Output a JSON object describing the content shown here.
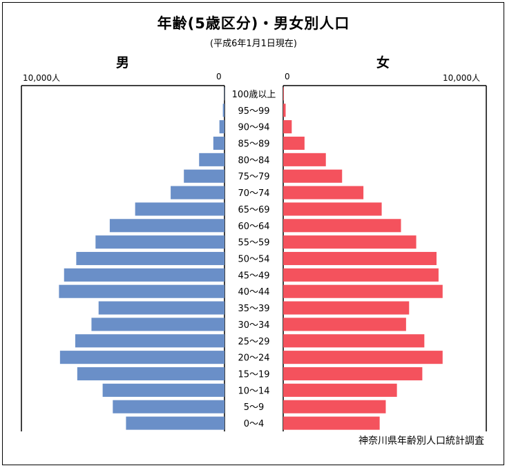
{
  "title": "年齢(5歳区分)・男女別人口",
  "subtitle": "(平成6年1月1日現在)",
  "male_label": "男",
  "female_label": "女",
  "axis": {
    "male_max_label": "10,000人",
    "male_zero_label": "0",
    "female_zero_label": "0",
    "female_max_label": "10,000人"
  },
  "source": "神奈川県年齢別人口統計調査",
  "colors": {
    "male": "#6a8fc8",
    "female": "#f4525d"
  },
  "chart_data": {
    "type": "bar",
    "orientation": "horizontal-pyramid",
    "xlim": [
      0,
      10000
    ],
    "categories": [
      "100歳以上",
      "95～99",
      "90～94",
      "85～89",
      "80～84",
      "75～79",
      "70～74",
      "65～69",
      "60～64",
      "55～59",
      "50～54",
      "45～49",
      "40～44",
      "35～39",
      "30～34",
      "25～29",
      "20～24",
      "15～19",
      "10～14",
      "5～9",
      "0～4"
    ],
    "series": [
      {
        "name": "男",
        "values": [
          10,
          80,
          250,
          550,
          1250,
          2000,
          2650,
          4400,
          5650,
          6350,
          7300,
          7900,
          8150,
          6200,
          6550,
          7350,
          8100,
          7250,
          6000,
          5500,
          4850
        ]
      },
      {
        "name": "女",
        "values": [
          30,
          120,
          420,
          1050,
          2100,
          2900,
          3950,
          4850,
          5800,
          6550,
          7550,
          7650,
          7850,
          6200,
          6050,
          6950,
          7850,
          6850,
          5600,
          5050,
          4750
        ]
      }
    ]
  }
}
